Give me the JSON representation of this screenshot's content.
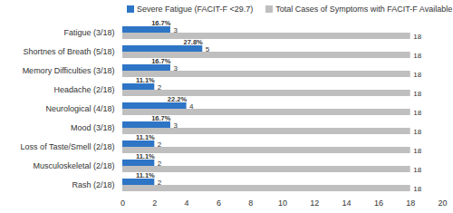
{
  "chart_data": {
    "type": "bar",
    "orientation": "horizontal",
    "categories": [
      "Fatigue (3/18)",
      "Shortnes of Breath (5/18)",
      "Memory Difficulties (3/18)",
      "Headache (2/18)",
      "Neurological (4/18)",
      "Mood (3/18)",
      "Loss of Taste/Smell (2/18)",
      "Musculoskeletal (2/18)",
      "Rash (2/18)"
    ],
    "series": [
      {
        "name": "Severe Fatigue (FACIT-F <29.7)",
        "color": "#2e75c6",
        "values": [
          3,
          5,
          3,
          2,
          4,
          3,
          2,
          2,
          2
        ],
        "percent_labels": [
          "16.7%",
          "27.8%",
          "16.7%",
          "11.1%",
          "22.2%",
          "16.7%",
          "11.1%",
          "11.1%",
          "11.1%"
        ]
      },
      {
        "name": "Total Cases of Symptoms with FACIT-F Available",
        "color": "#bfbfbf",
        "values": [
          18,
          18,
          18,
          18,
          18,
          18,
          18,
          18,
          18
        ]
      }
    ],
    "xlim": [
      0,
      20
    ],
    "xticks": [
      0,
      2,
      4,
      6,
      8,
      10,
      12,
      14,
      16,
      18,
      20
    ],
    "data_labels": true,
    "legend": "top",
    "grid": false
  }
}
